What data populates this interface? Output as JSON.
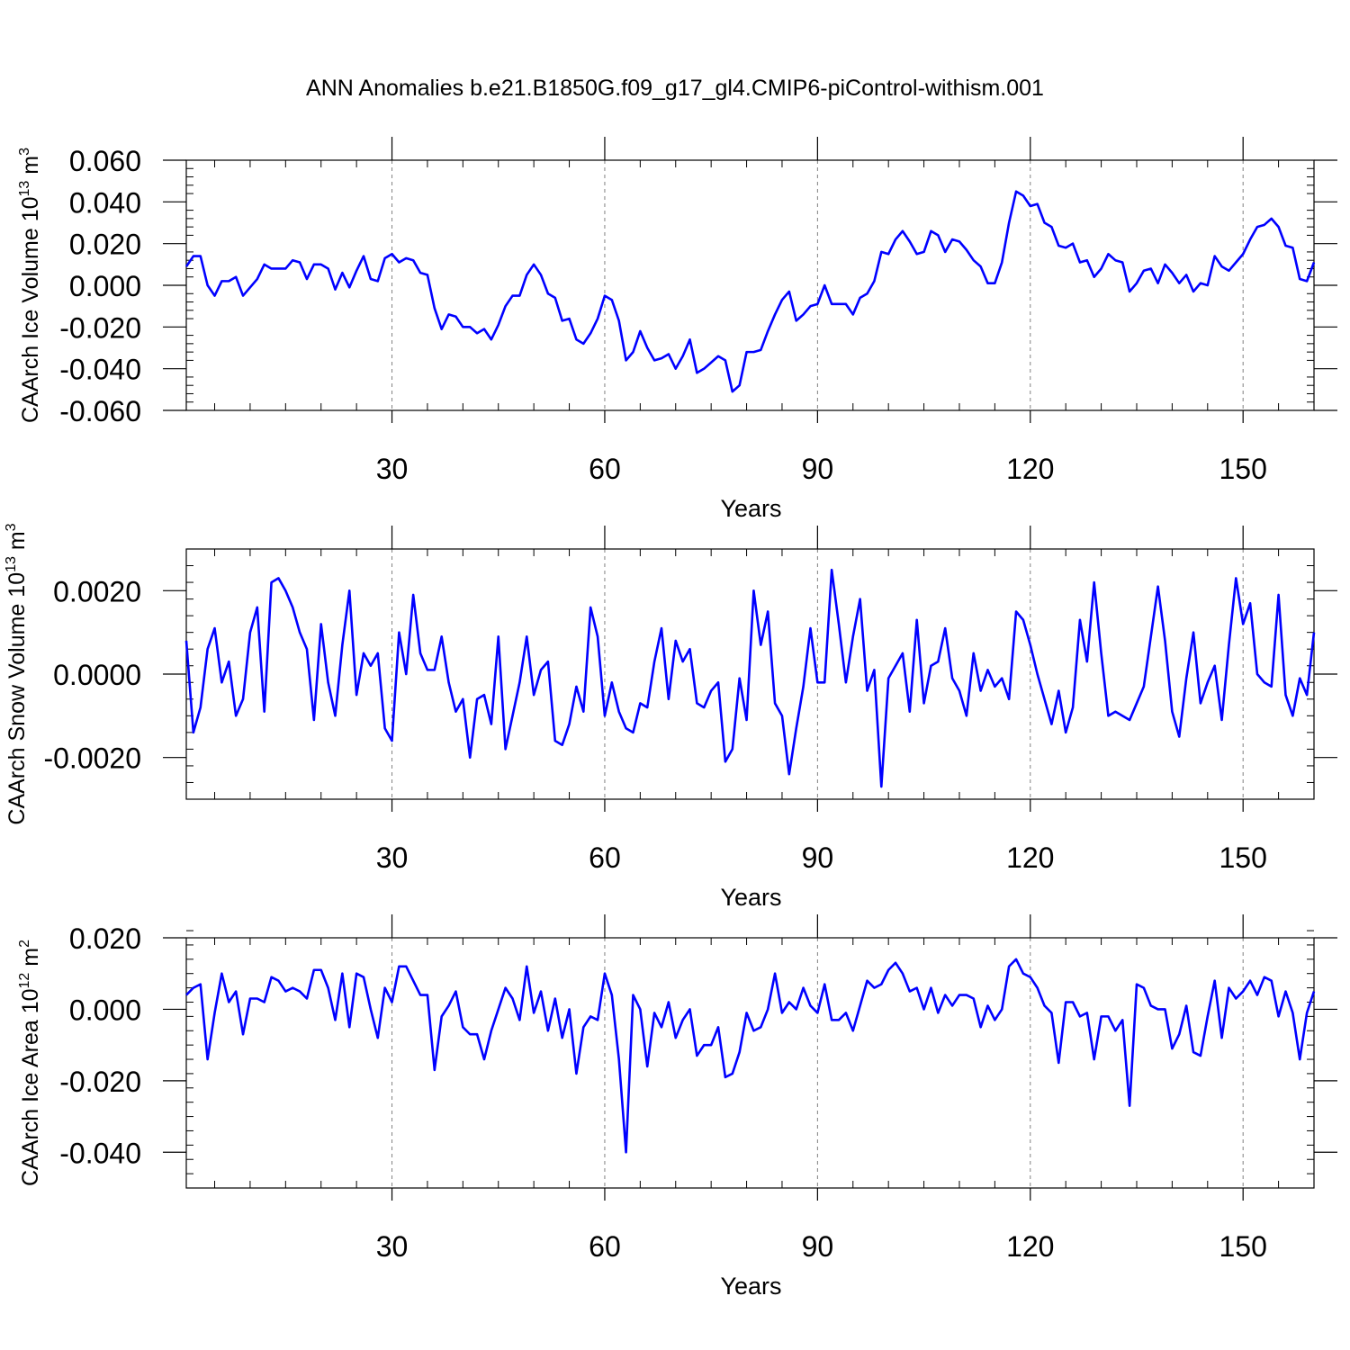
{
  "figure": {
    "title": "ANN Anomalies b.e21.B1850G.f09_g17_gl4.CMIP6-piControl-withism.001"
  },
  "colors": {
    "series": "#0000ff",
    "axis": "#000000",
    "grid": "#808080"
  },
  "chart_data": [
    {
      "type": "line",
      "ylabel": "CAArch Ice Volume 10",
      "ylabel_exponent": "13",
      "ylabel_unit": "m",
      "ylabel_unit_exponent": "3",
      "xlabel": "Years",
      "xlim": [
        1,
        160
      ],
      "ylim": [
        -0.06,
        0.06
      ],
      "x_ticks": [
        30,
        60,
        90,
        120,
        150
      ],
      "x_tick_labels": [
        "30",
        "60",
        "90",
        "120",
        "150"
      ],
      "y_ticks": [
        -0.06,
        -0.04,
        -0.02,
        0.0,
        0.02,
        0.04,
        0.06
      ],
      "y_tick_labels": [
        "-0.060",
        "-0.040",
        "-0.020",
        "0.000",
        "0.020",
        "0.040",
        "0.060"
      ],
      "grid": "vertical dashed at major x ticks",
      "series": [
        {
          "values": [
            0.009,
            0.014,
            0.014,
            0.0,
            -0.005,
            0.002,
            0.002,
            0.004,
            -0.005,
            -0.001,
            0.003,
            0.01,
            0.008,
            0.008,
            0.008,
            0.012,
            0.011,
            0.003,
            0.01,
            0.01,
            0.008,
            -0.002,
            0.006,
            -0.001,
            0.007,
            0.014,
            0.003,
            0.002,
            0.013,
            0.015,
            0.011,
            0.013,
            0.012,
            0.006,
            0.005,
            -0.011,
            -0.021,
            -0.014,
            -0.015,
            -0.02,
            -0.02,
            -0.023,
            -0.021,
            -0.026,
            -0.019,
            -0.01,
            -0.005,
            -0.005,
            0.005,
            0.01,
            0.005,
            -0.004,
            -0.006,
            -0.017,
            -0.016,
            -0.026,
            -0.028,
            -0.023,
            -0.016,
            -0.005,
            -0.007,
            -0.017,
            -0.036,
            -0.032,
            -0.022,
            -0.03,
            -0.036,
            -0.035,
            -0.033,
            -0.04,
            -0.034,
            -0.026,
            -0.042,
            -0.04,
            -0.037,
            -0.034,
            -0.036,
            -0.051,
            -0.048,
            -0.032,
            -0.032,
            -0.031,
            -0.022,
            -0.014,
            -0.007,
            -0.003,
            -0.017,
            -0.014,
            -0.01,
            -0.009,
            0.0,
            -0.009,
            -0.009,
            -0.009,
            -0.014,
            -0.006,
            -0.004,
            0.002,
            0.016,
            0.015,
            0.022,
            0.026,
            0.021,
            0.015,
            0.016,
            0.026,
            0.024,
            0.016,
            0.022,
            0.021,
            0.017,
            0.012,
            0.009,
            0.001,
            0.001,
            0.011,
            0.03,
            0.045,
            0.043,
            0.038,
            0.039,
            0.03,
            0.028,
            0.019,
            0.018,
            0.02,
            0.011,
            0.012,
            0.004,
            0.008,
            0.015,
            0.012,
            0.011,
            -0.003,
            0.001,
            0.007,
            0.008,
            0.001,
            0.01,
            0.006,
            0.001,
            0.005,
            -0.003,
            0.001,
            0.0,
            0.014,
            0.009,
            0.007,
            0.011,
            0.015,
            0.022,
            0.028,
            0.029,
            0.032,
            0.028,
            0.019,
            0.018,
            0.003,
            0.002,
            0.011
          ]
        }
      ]
    },
    {
      "type": "line",
      "ylabel": "CAArch Snow Volume 10",
      "ylabel_exponent": "13",
      "ylabel_unit": "m",
      "ylabel_unit_exponent": "3",
      "xlabel": "Years",
      "xlim": [
        1,
        160
      ],
      "ylim": [
        -0.003,
        0.003
      ],
      "x_ticks": [
        30,
        60,
        90,
        120,
        150
      ],
      "x_tick_labels": [
        "30",
        "60",
        "90",
        "120",
        "150"
      ],
      "y_ticks": [
        -0.002,
        0.0,
        0.002
      ],
      "y_tick_labels": [
        "-0.0020",
        "0.0000",
        "0.0020"
      ],
      "grid": "vertical dashed at major x ticks",
      "series": [
        {
          "values": [
            0.0008,
            -0.0014,
            -0.0008,
            0.0006,
            0.0011,
            -0.0002,
            0.0003,
            -0.001,
            -0.0006,
            0.001,
            0.0016,
            -0.0009,
            0.0022,
            0.0023,
            0.002,
            0.0016,
            0.001,
            0.0006,
            -0.0011,
            0.0012,
            -0.0002,
            -0.001,
            0.0007,
            0.002,
            -0.0005,
            0.0005,
            0.0002,
            0.0005,
            -0.0013,
            -0.0016,
            0.001,
            0.0,
            0.0019,
            0.0005,
            0.0001,
            0.0001,
            0.0009,
            -0.0002,
            -0.0009,
            -0.0006,
            -0.002,
            -0.0006,
            -0.0005,
            -0.0012,
            0.0009,
            -0.0018,
            -0.001,
            -0.0002,
            0.0009,
            -0.0005,
            0.0001,
            0.0003,
            -0.0016,
            -0.0017,
            -0.0012,
            -0.0003,
            -0.0009,
            0.0016,
            0.0009,
            -0.001,
            -0.0002,
            -0.0009,
            -0.0013,
            -0.0014,
            -0.0007,
            -0.0008,
            0.0003,
            0.0011,
            -0.0006,
            0.0008,
            0.0003,
            0.0006,
            -0.0007,
            -0.0008,
            -0.0004,
            -0.0002,
            -0.0021,
            -0.0018,
            -0.0001,
            -0.0011,
            0.002,
            0.0007,
            0.0015,
            -0.0007,
            -0.001,
            -0.0024,
            -0.0013,
            -0.0003,
            0.0011,
            -0.0002,
            -0.0002,
            0.0025,
            0.0012,
            -0.0002,
            0.0009,
            0.0018,
            -0.0004,
            0.0001,
            -0.0027,
            -0.0001,
            0.0002,
            0.0005,
            -0.0009,
            0.0013,
            -0.0007,
            0.0002,
            0.0003,
            0.0011,
            -0.0001,
            -0.0004,
            -0.001,
            0.0005,
            -0.0004,
            0.0001,
            -0.0003,
            -0.0001,
            -0.0006,
            0.0015,
            0.0013,
            0.0007,
            0.0,
            -0.0006,
            -0.0012,
            -0.0004,
            -0.0014,
            -0.0008,
            0.0013,
            0.0003,
            0.0022,
            0.0005,
            -0.001,
            -0.0009,
            -0.001,
            -0.0011,
            -0.0007,
            -0.0003,
            0.0009,
            0.0021,
            0.0008,
            -0.0009,
            -0.0015,
            -0.0001,
            0.001,
            -0.0007,
            -0.0002,
            0.0002,
            -0.0011,
            0.0007,
            0.0023,
            0.0012,
            0.0017,
            0.0,
            -0.0002,
            -0.0003,
            0.0019,
            -0.0005,
            -0.001,
            -0.0001,
            -0.0005,
            0.001
          ]
        }
      ]
    },
    {
      "type": "line",
      "ylabel": "CAArch Ice Area 10",
      "ylabel_exponent": "12",
      "ylabel_unit": "m",
      "ylabel_unit_exponent": "2",
      "xlabel": "Years",
      "xlim": [
        1,
        160
      ],
      "ylim": [
        -0.05,
        0.02
      ],
      "x_ticks": [
        30,
        60,
        90,
        120,
        150
      ],
      "x_tick_labels": [
        "30",
        "60",
        "90",
        "120",
        "150"
      ],
      "y_ticks": [
        -0.04,
        -0.02,
        0.0,
        0.02
      ],
      "y_tick_labels": [
        "-0.040",
        "-0.020",
        "0.000",
        "0.020"
      ],
      "grid": "vertical dashed at major x ticks",
      "series": [
        {
          "values": [
            0.004,
            0.006,
            0.007,
            -0.014,
            -0.001,
            0.01,
            0.002,
            0.005,
            -0.007,
            0.003,
            0.003,
            0.002,
            0.009,
            0.008,
            0.005,
            0.006,
            0.005,
            0.003,
            0.011,
            0.011,
            0.006,
            -0.003,
            0.01,
            -0.005,
            0.01,
            0.009,
            0.0,
            -0.008,
            0.006,
            0.002,
            0.012,
            0.012,
            0.008,
            0.004,
            0.004,
            -0.017,
            -0.002,
            0.001,
            0.005,
            -0.005,
            -0.007,
            -0.007,
            -0.014,
            -0.006,
            0.0,
            0.006,
            0.003,
            -0.003,
            0.012,
            -0.001,
            0.005,
            -0.006,
            0.003,
            -0.008,
            0.0,
            -0.018,
            -0.005,
            -0.002,
            -0.003,
            0.01,
            0.004,
            -0.014,
            -0.04,
            0.004,
            0.0,
            -0.016,
            -0.001,
            -0.005,
            0.002,
            -0.008,
            -0.003,
            0.0,
            -0.013,
            -0.01,
            -0.01,
            -0.005,
            -0.019,
            -0.018,
            -0.012,
            -0.001,
            -0.006,
            -0.005,
            0.0,
            0.01,
            -0.001,
            0.002,
            0.0,
            0.006,
            0.001,
            -0.001,
            0.007,
            -0.003,
            -0.003,
            -0.001,
            -0.006,
            0.001,
            0.008,
            0.006,
            0.007,
            0.011,
            0.013,
            0.01,
            0.005,
            0.006,
            0.0,
            0.006,
            -0.001,
            0.004,
            0.001,
            0.004,
            0.004,
            0.003,
            -0.005,
            0.001,
            -0.003,
            0.0,
            0.012,
            0.014,
            0.01,
            0.009,
            0.006,
            0.001,
            -0.001,
            -0.015,
            0.002,
            0.002,
            -0.002,
            -0.001,
            -0.014,
            -0.002,
            -0.002,
            -0.006,
            -0.003,
            -0.027,
            0.007,
            0.006,
            0.001,
            0.0,
            0.0,
            -0.011,
            -0.007,
            0.001,
            -0.012,
            -0.013,
            -0.002,
            0.008,
            -0.008,
            0.006,
            0.003,
            0.005,
            0.008,
            0.004,
            0.009,
            0.008,
            -0.002,
            0.005,
            -0.001,
            -0.014,
            -0.001,
            0.005
          ]
        }
      ]
    }
  ]
}
